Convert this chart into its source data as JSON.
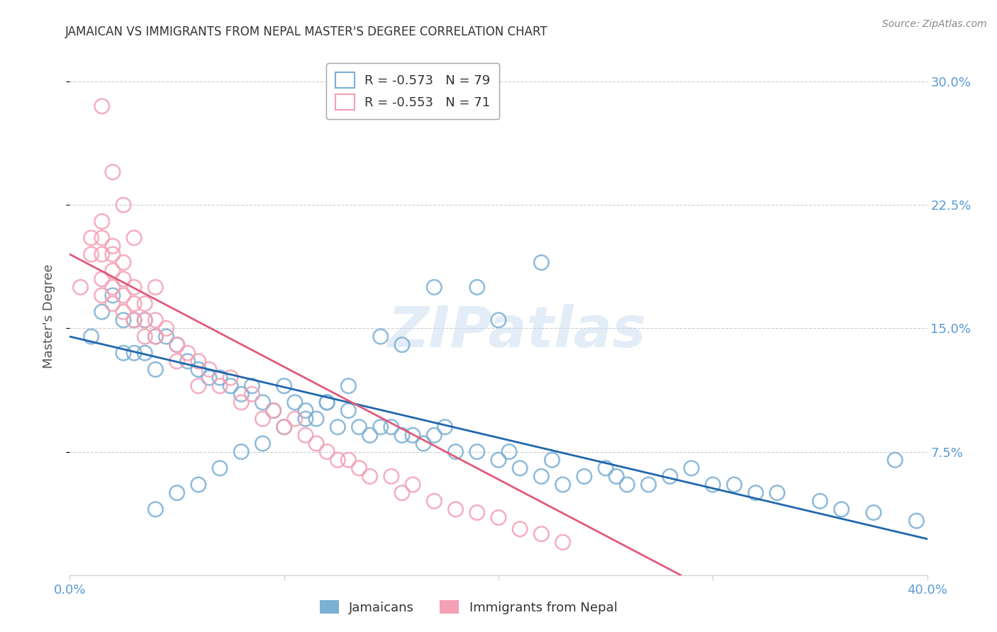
{
  "title": "JAMAICAN VS IMMIGRANTS FROM NEPAL MASTER'S DEGREE CORRELATION CHART",
  "source": "Source: ZipAtlas.com",
  "ylabel": "Master's Degree",
  "xlim": [
    0.0,
    0.4
  ],
  "ylim": [
    0.0,
    0.315
  ],
  "ytick_vals": [
    0.075,
    0.15,
    0.225,
    0.3
  ],
  "ytick_labels": [
    "7.5%",
    "15.0%",
    "22.5%",
    "30.0%"
  ],
  "xtick_vals": [
    0.0,
    0.1,
    0.2,
    0.3,
    0.4
  ],
  "xtick_labels": [
    "0.0%",
    "",
    "",
    "",
    "40.0%"
  ],
  "grid_color": "#cccccc",
  "background_color": "#ffffff",
  "watermark": "ZIPatlas",
  "legend_blue_r": "-0.573",
  "legend_blue_n": "79",
  "legend_pink_r": "-0.553",
  "legend_pink_n": "71",
  "blue_color": "#7bafd4",
  "pink_color": "#f4a0b5",
  "blue_line_color": "#2166ac",
  "pink_line_color": "#e05a7a",
  "title_color": "#333333",
  "axis_color": "#5b9bd5",
  "blue_points_x": [
    0.01,
    0.015,
    0.02,
    0.025,
    0.025,
    0.03,
    0.03,
    0.035,
    0.035,
    0.04,
    0.04,
    0.045,
    0.05,
    0.055,
    0.06,
    0.065,
    0.07,
    0.075,
    0.08,
    0.085,
    0.09,
    0.095,
    0.1,
    0.105,
    0.11,
    0.115,
    0.12,
    0.125,
    0.13,
    0.135,
    0.14,
    0.145,
    0.15,
    0.155,
    0.16,
    0.165,
    0.17,
    0.175,
    0.18,
    0.19,
    0.2,
    0.205,
    0.21,
    0.22,
    0.225,
    0.23,
    0.24,
    0.25,
    0.255,
    0.26,
    0.27,
    0.28,
    0.29,
    0.3,
    0.31,
    0.32,
    0.33,
    0.35,
    0.36,
    0.375,
    0.385,
    0.395,
    0.22,
    0.17,
    0.2,
    0.19,
    0.155,
    0.145,
    0.13,
    0.12,
    0.11,
    0.1,
    0.09,
    0.08,
    0.07,
    0.06,
    0.05,
    0.04
  ],
  "blue_points_y": [
    0.145,
    0.16,
    0.17,
    0.155,
    0.135,
    0.155,
    0.135,
    0.155,
    0.135,
    0.145,
    0.125,
    0.145,
    0.14,
    0.13,
    0.125,
    0.12,
    0.12,
    0.115,
    0.11,
    0.115,
    0.105,
    0.1,
    0.115,
    0.105,
    0.1,
    0.095,
    0.105,
    0.09,
    0.1,
    0.09,
    0.085,
    0.09,
    0.09,
    0.085,
    0.085,
    0.08,
    0.085,
    0.09,
    0.075,
    0.075,
    0.07,
    0.075,
    0.065,
    0.06,
    0.07,
    0.055,
    0.06,
    0.065,
    0.06,
    0.055,
    0.055,
    0.06,
    0.065,
    0.055,
    0.055,
    0.05,
    0.05,
    0.045,
    0.04,
    0.038,
    0.07,
    0.033,
    0.19,
    0.175,
    0.155,
    0.175,
    0.14,
    0.145,
    0.115,
    0.105,
    0.095,
    0.09,
    0.08,
    0.075,
    0.065,
    0.055,
    0.05,
    0.04
  ],
  "pink_points_x": [
    0.005,
    0.01,
    0.01,
    0.015,
    0.015,
    0.015,
    0.015,
    0.015,
    0.02,
    0.02,
    0.02,
    0.02,
    0.02,
    0.025,
    0.025,
    0.025,
    0.025,
    0.03,
    0.03,
    0.03,
    0.035,
    0.035,
    0.035,
    0.04,
    0.04,
    0.045,
    0.05,
    0.05,
    0.055,
    0.06,
    0.06,
    0.065,
    0.07,
    0.075,
    0.08,
    0.085,
    0.09,
    0.095,
    0.1,
    0.105,
    0.11,
    0.115,
    0.12,
    0.125,
    0.13,
    0.135,
    0.14,
    0.15,
    0.155,
    0.16,
    0.17,
    0.18,
    0.19,
    0.2,
    0.21,
    0.22,
    0.23,
    0.015,
    0.02,
    0.025,
    0.03,
    0.04
  ],
  "pink_points_y": [
    0.175,
    0.205,
    0.195,
    0.215,
    0.205,
    0.195,
    0.18,
    0.17,
    0.2,
    0.195,
    0.185,
    0.175,
    0.165,
    0.19,
    0.18,
    0.17,
    0.16,
    0.175,
    0.165,
    0.155,
    0.165,
    0.155,
    0.145,
    0.155,
    0.145,
    0.15,
    0.14,
    0.13,
    0.135,
    0.13,
    0.115,
    0.125,
    0.115,
    0.12,
    0.105,
    0.11,
    0.095,
    0.1,
    0.09,
    0.095,
    0.085,
    0.08,
    0.075,
    0.07,
    0.07,
    0.065,
    0.06,
    0.06,
    0.05,
    0.055,
    0.045,
    0.04,
    0.038,
    0.035,
    0.028,
    0.025,
    0.02,
    0.285,
    0.245,
    0.225,
    0.205,
    0.175
  ],
  "blue_line_x": [
    0.0,
    0.4
  ],
  "blue_line_y": [
    0.145,
    0.022
  ],
  "pink_line_x": [
    0.0,
    0.285
  ],
  "pink_line_y": [
    0.195,
    0.0
  ]
}
